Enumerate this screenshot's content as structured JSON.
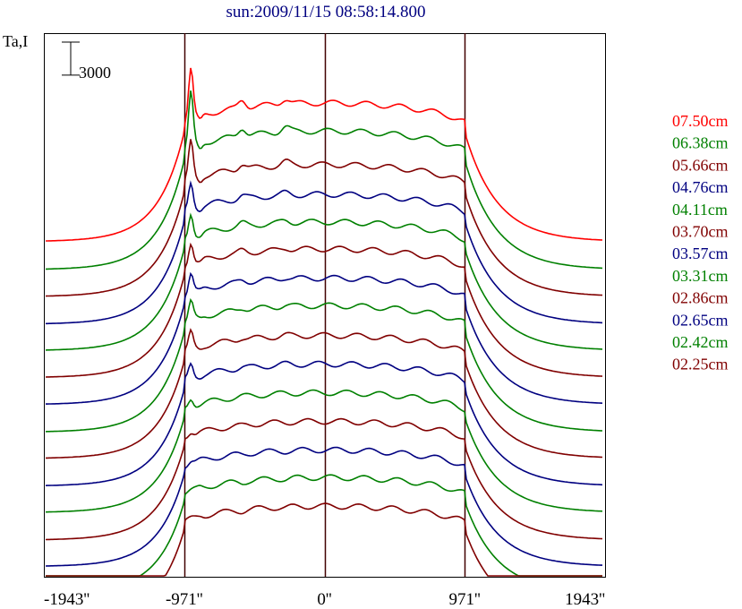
{
  "chart_data": {
    "type": "line",
    "title": "sun:2009/11/15 08:58:14.800",
    "ylabel": "Ta,I",
    "xlabel": "",
    "xlim": [
      -1943,
      1943
    ],
    "x_ticks": [
      "-1943''",
      "-971''",
      "0''",
      "971''",
      "1943''"
    ],
    "x_tick_values": [
      -1943,
      -971,
      0,
      971,
      1943
    ],
    "vertical_markers": [
      -971,
      0,
      971
    ],
    "scale_bar": {
      "label": "3000",
      "value": 3000
    },
    "grid": false,
    "legend_position": "right",
    "series": [
      {
        "name": "07.50cm",
        "color": "#ff0000",
        "offset": 0,
        "quiet_level": 0,
        "disk_center": 12600,
        "limb_peak": 16600
      },
      {
        "name": "06.38cm",
        "color": "#008000",
        "offset": -2550,
        "quiet_level": 0,
        "disk_center": 12600,
        "limb_peak": 16900
      },
      {
        "name": "05.66cm",
        "color": "#800000",
        "offset": -5000,
        "quiet_level": 0,
        "disk_center": 12000,
        "limb_peak": 14900
      },
      {
        "name": "04.76cm",
        "color": "#000080",
        "offset": -7500,
        "quiet_level": 0,
        "disk_center": 11800,
        "limb_peak": 13600
      },
      {
        "name": "04.11cm",
        "color": "#008000",
        "offset": -9900,
        "quiet_level": 0,
        "disk_center": 11700,
        "limb_peak": 13300
      },
      {
        "name": "03.70cm",
        "color": "#800000",
        "offset": -12350,
        "quiet_level": 0,
        "disk_center": 11700,
        "limb_peak": 13100
      },
      {
        "name": "03.57cm",
        "color": "#000080",
        "offset": -14800,
        "quiet_level": 0,
        "disk_center": 11500,
        "limb_peak": 12700
      },
      {
        "name": "03.31cm",
        "color": "#008000",
        "offset": -17300,
        "quiet_level": 0,
        "disk_center": 11500,
        "limb_peak": 12600
      },
      {
        "name": "02.86cm",
        "color": "#800000",
        "offset": -19700,
        "quiet_level": 0,
        "disk_center": 11200,
        "limb_peak": 12200
      },
      {
        "name": "02.65cm",
        "color": "#000080",
        "offset": -22200,
        "quiet_level": 0,
        "disk_center": 11100,
        "limb_peak": 11800
      },
      {
        "name": "02.42cm",
        "color": "#008000",
        "offset": -24600,
        "quiet_level": 0,
        "disk_center": 10900,
        "limb_peak": 11100
      },
      {
        "name": "02.25cm",
        "color": "#800000",
        "offset": -27100,
        "quiet_level": 0,
        "disk_center": 10800,
        "limb_peak": 10600
      }
    ],
    "extra_traces": [
      {
        "color": "#000080",
        "offset": -29500,
        "disk_center": 10600,
        "limb_peak": 10300
      },
      {
        "color": "#008000",
        "offset": -31900,
        "disk_center": 10500,
        "limb_peak": 10000
      },
      {
        "color": "#800000",
        "offset": -34300,
        "disk_center": 10300,
        "limb_peak": 9800
      }
    ]
  }
}
